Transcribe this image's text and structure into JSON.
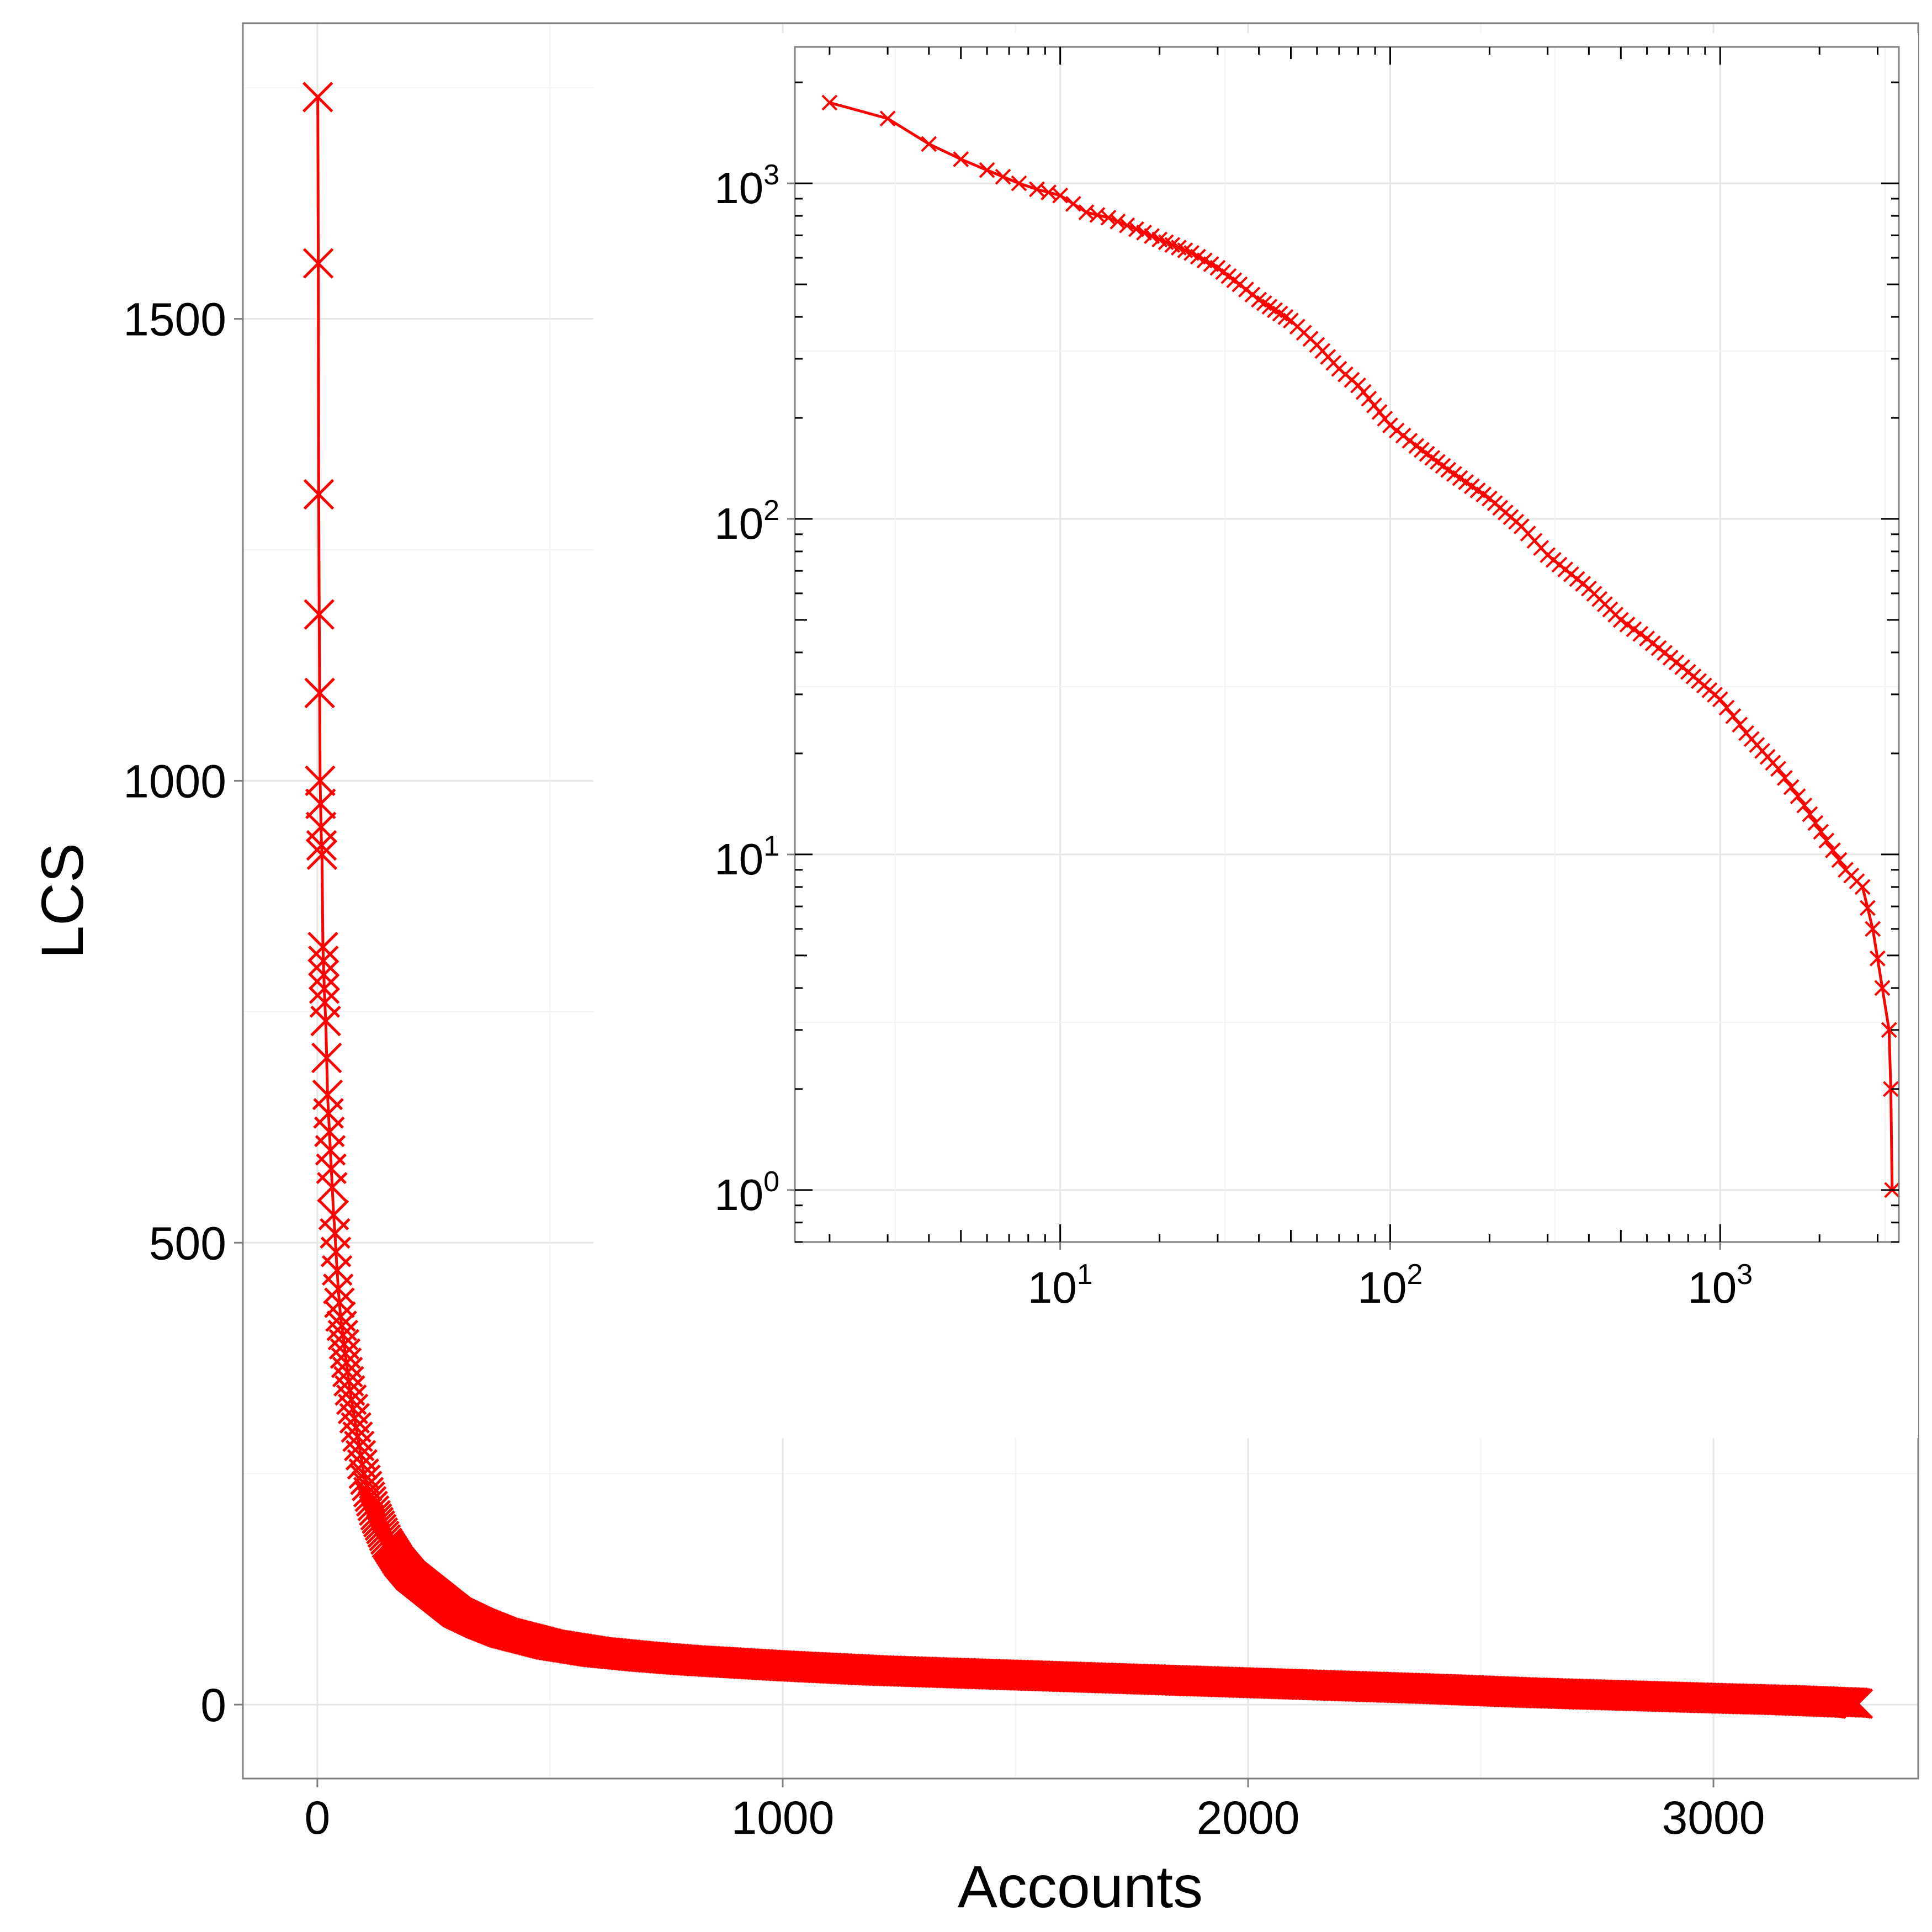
{
  "chart_data": [
    {
      "type": "scatter",
      "xlabel": "Accounts",
      "ylabel": "LCS",
      "xlim": [
        -160,
        3440
      ],
      "ylim": [
        -80,
        1820
      ],
      "x_ticks": [
        0,
        1000,
        2000,
        3000
      ],
      "y_ticks": [
        0,
        500,
        1000,
        1500
      ],
      "x_tick_labels": [
        "0",
        "1000",
        "2000",
        "3000"
      ],
      "y_tick_labels": [
        "0",
        "500",
        "1000",
        "1500"
      ],
      "grid": true,
      "series": [
        {
          "color": "#ff0000",
          "marker": "x",
          "connected": true,
          "points": [
            [
              1,
              1740
            ],
            [
              2,
              1560
            ],
            [
              3,
              1310
            ],
            [
              4,
              1180
            ],
            [
              5,
              1095
            ],
            [
              6,
              1000
            ],
            [
              7,
              975
            ],
            [
              8,
              950
            ],
            [
              9,
              930
            ],
            [
              10,
              920
            ],
            [
              12,
              820
            ],
            [
              13,
              805
            ],
            [
              14,
              790
            ],
            [
              15,
              775
            ],
            [
              16,
              760
            ],
            [
              18,
              740
            ],
            [
              20,
              700
            ],
            [
              22,
              660
            ],
            [
              24,
              640
            ],
            [
              26,
              620
            ],
            [
              28,
              600
            ],
            [
              30,
              580
            ],
            [
              32,
              560
            ],
            [
              35,
              530
            ],
            [
              38,
              510
            ],
            [
              40,
              490
            ],
            [
              45,
              450
            ],
            [
              50,
              420
            ],
            [
              55,
              400
            ],
            [
              60,
              380
            ],
            [
              65,
              360
            ],
            [
              70,
              340
            ],
            [
              80,
              310
            ],
            [
              90,
              280
            ],
            [
              100,
              250
            ],
            [
              110,
              230
            ],
            [
              125,
              205
            ],
            [
              150,
              175
            ],
            [
              175,
              155
            ],
            [
              200,
              140
            ],
            [
              250,
              120
            ],
            [
              300,
              100
            ],
            [
              350,
              88
            ],
            [
              400,
              78
            ],
            [
              500,
              65
            ],
            [
              600,
              57
            ],
            [
              700,
              52
            ],
            [
              800,
              48
            ],
            [
              1000,
              42
            ],
            [
              1200,
              37
            ],
            [
              1500,
              32
            ],
            [
              1800,
              27
            ],
            [
              2100,
              22
            ],
            [
              2400,
              17
            ],
            [
              2600,
              13
            ],
            [
              2800,
              10
            ],
            [
              3000,
              7
            ],
            [
              3150,
              5
            ],
            [
              3250,
              3
            ],
            [
              3300,
              2
            ],
            [
              3310,
              1
            ]
          ]
        }
      ]
    },
    {
      "type": "line",
      "scale": "log-log",
      "xlim": [
        1.57,
        3480
      ],
      "ylim": [
        0.7,
        2550
      ],
      "x_ticks": [
        10,
        100,
        1000
      ],
      "y_ticks": [
        1,
        10,
        100,
        1000
      ],
      "x_tick_labels": [
        {
          "base": "10",
          "exp": "1"
        },
        {
          "base": "10",
          "exp": "2"
        },
        {
          "base": "10",
          "exp": "3"
        }
      ],
      "y_tick_labels": [
        {
          "base": "10",
          "exp": "0"
        },
        {
          "base": "10",
          "exp": "1"
        },
        {
          "base": "10",
          "exp": "2"
        },
        {
          "base": "10",
          "exp": "3"
        }
      ],
      "grid": true,
      "series": [
        {
          "color": "#ff0000",
          "marker": "x",
          "points": [
            [
              2,
              1740
            ],
            [
              3,
              1560
            ],
            [
              4,
              1310
            ],
            [
              5,
              1180
            ],
            [
              6,
              1095
            ],
            [
              7.5,
              1000
            ],
            [
              8.5,
              960
            ],
            [
              10,
              920
            ],
            [
              12,
              820
            ],
            [
              14,
              790
            ],
            [
              17,
              730
            ],
            [
              20,
              680
            ],
            [
              25,
              620
            ],
            [
              30,
              560
            ],
            [
              35,
              500
            ],
            [
              40,
              450
            ],
            [
              50,
              390
            ],
            [
              60,
              330
            ],
            [
              70,
              280
            ],
            [
              80,
              250
            ],
            [
              100,
              190
            ],
            [
              120,
              165
            ],
            [
              150,
              140
            ],
            [
              200,
              115
            ],
            [
              250,
              95
            ],
            [
              300,
              78
            ],
            [
              400,
              62
            ],
            [
              500,
              50
            ],
            [
              600,
              44
            ],
            [
              800,
              35
            ],
            [
              1000,
              29
            ],
            [
              1200,
              23
            ],
            [
              1500,
              18
            ],
            [
              1800,
              14
            ],
            [
              2100,
              11
            ],
            [
              2400,
              9
            ],
            [
              2700,
              8
            ],
            [
              2900,
              6
            ],
            [
              3100,
              4
            ],
            [
              3250,
              3
            ],
            [
              3290,
              2
            ],
            [
              3320,
              1
            ]
          ]
        }
      ]
    }
  ]
}
